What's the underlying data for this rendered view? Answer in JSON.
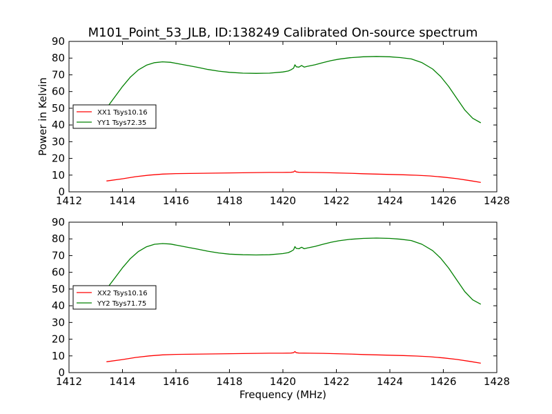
{
  "title": "M101_Point_53_JLB, ID:138249 Calibrated On-source spectrum",
  "chart_data": [
    {
      "type": "line",
      "title": "M101_Point_53_JLB, ID:138249 Calibrated On-source spectrum",
      "xlabel": "",
      "ylabel": "Power in Kelvin",
      "xlim": [
        1412,
        1428
      ],
      "ylim": [
        0,
        90
      ],
      "xticks": [
        "1412",
        "1414",
        "1416",
        "1418",
        "1420",
        "1422",
        "1424",
        "1426",
        "1428"
      ],
      "yticks": [
        "0",
        "10",
        "20",
        "30",
        "40",
        "50",
        "60",
        "70",
        "80",
        "90"
      ],
      "grid": false,
      "legend": "center-left",
      "series": [
        {
          "name": "XX1 Tsys10.16",
          "color": "#ff0000",
          "x": [
            1413.4,
            1414,
            1414.5,
            1415,
            1415.5,
            1416,
            1416.5,
            1417,
            1417.5,
            1418,
            1418.5,
            1419,
            1419.5,
            1420,
            1420.3,
            1420.4,
            1420.45,
            1420.5,
            1420.6,
            1421,
            1421.5,
            1422,
            1422.5,
            1423,
            1423.5,
            1424,
            1424.5,
            1425,
            1425.5,
            1426,
            1426.5,
            1427,
            1427.4
          ],
          "y": [
            6.5,
            7.8,
            9.1,
            10.0,
            10.6,
            10.9,
            11.0,
            11.1,
            11.2,
            11.3,
            11.4,
            11.5,
            11.6,
            11.6,
            11.7,
            11.9,
            12.6,
            11.9,
            11.7,
            11.6,
            11.5,
            11.3,
            11.1,
            10.8,
            10.6,
            10.4,
            10.2,
            9.9,
            9.5,
            8.8,
            7.9,
            6.7,
            5.6
          ]
        },
        {
          "name": "YY1 Tsys72.35",
          "color": "#008000",
          "x": [
            1413.4,
            1413.7,
            1414,
            1414.3,
            1414.6,
            1414.9,
            1415.2,
            1415.5,
            1415.8,
            1416.1,
            1416.4,
            1416.8,
            1417.2,
            1417.6,
            1418,
            1418.5,
            1419,
            1419.5,
            1420,
            1420.2,
            1420.3,
            1420.4,
            1420.45,
            1420.5,
            1420.6,
            1420.7,
            1420.8,
            1420.9,
            1421.2,
            1421.5,
            1421.8,
            1422.1,
            1422.5,
            1423,
            1423.5,
            1424,
            1424.4,
            1424.8,
            1425.2,
            1425.6,
            1425.9,
            1426.2,
            1426.5,
            1426.8,
            1427.1,
            1427.4
          ],
          "y": [
            50.0,
            56.5,
            63.0,
            68.7,
            73.0,
            75.8,
            77.3,
            77.8,
            77.5,
            76.6,
            75.7,
            74.5,
            73.2,
            72.2,
            71.5,
            71.0,
            70.9,
            71.0,
            71.7,
            72.3,
            73.0,
            74.0,
            76.0,
            74.8,
            74.6,
            75.6,
            74.6,
            75.0,
            76.0,
            77.3,
            78.5,
            79.4,
            80.2,
            80.8,
            81.0,
            80.8,
            80.3,
            79.5,
            77.3,
            73.5,
            69.0,
            63.0,
            56.0,
            49.0,
            44.0,
            41.3
          ]
        }
      ]
    },
    {
      "type": "line",
      "title": "",
      "xlabel": "Frequency (MHz)",
      "ylabel": "",
      "xlim": [
        1412,
        1428
      ],
      "ylim": [
        0,
        90
      ],
      "xticks": [
        "1412",
        "1414",
        "1416",
        "1418",
        "1420",
        "1422",
        "1424",
        "1426",
        "1428"
      ],
      "yticks": [
        "0",
        "10",
        "20",
        "30",
        "40",
        "50",
        "60",
        "70",
        "80",
        "90"
      ],
      "grid": false,
      "legend": "center-left",
      "series": [
        {
          "name": "XX2 Tsys10.16",
          "color": "#ff0000",
          "x": [
            1413.4,
            1414,
            1414.5,
            1415,
            1415.5,
            1416,
            1416.5,
            1417,
            1417.5,
            1418,
            1418.5,
            1419,
            1419.5,
            1420,
            1420.3,
            1420.4,
            1420.45,
            1420.5,
            1420.6,
            1421,
            1421.5,
            1422,
            1422.5,
            1423,
            1423.5,
            1424,
            1424.5,
            1425,
            1425.5,
            1426,
            1426.5,
            1427,
            1427.4
          ],
          "y": [
            6.5,
            7.8,
            9.1,
            10.0,
            10.6,
            10.9,
            11.0,
            11.1,
            11.2,
            11.3,
            11.4,
            11.5,
            11.6,
            11.6,
            11.7,
            11.9,
            12.6,
            11.9,
            11.7,
            11.6,
            11.5,
            11.3,
            11.1,
            10.8,
            10.6,
            10.4,
            10.2,
            9.9,
            9.5,
            8.8,
            7.9,
            6.7,
            5.6
          ]
        },
        {
          "name": "YY2 Tsys71.75",
          "color": "#008000",
          "x": [
            1413.4,
            1413.7,
            1414,
            1414.3,
            1414.6,
            1414.9,
            1415.2,
            1415.5,
            1415.8,
            1416.1,
            1416.4,
            1416.8,
            1417.2,
            1417.6,
            1418,
            1418.5,
            1419,
            1419.5,
            1420,
            1420.2,
            1420.3,
            1420.4,
            1420.45,
            1420.5,
            1420.6,
            1420.7,
            1420.8,
            1420.9,
            1421.2,
            1421.5,
            1421.8,
            1422.1,
            1422.5,
            1423,
            1423.5,
            1424,
            1424.4,
            1424.8,
            1425.2,
            1425.6,
            1425.9,
            1426.2,
            1426.5,
            1426.8,
            1427.1,
            1427.4
          ],
          "y": [
            50.0,
            56.3,
            62.7,
            68.3,
            72.5,
            75.3,
            76.8,
            77.2,
            76.9,
            76.0,
            75.1,
            73.9,
            72.6,
            71.6,
            70.9,
            70.5,
            70.4,
            70.5,
            71.2,
            71.8,
            72.5,
            73.5,
            75.4,
            74.3,
            74.1,
            75.0,
            74.1,
            74.5,
            75.5,
            76.8,
            78.0,
            78.9,
            79.7,
            80.3,
            80.5,
            80.3,
            79.8,
            79.0,
            76.8,
            73.0,
            68.5,
            62.5,
            55.5,
            48.5,
            43.5,
            40.9
          ]
        }
      ]
    }
  ]
}
